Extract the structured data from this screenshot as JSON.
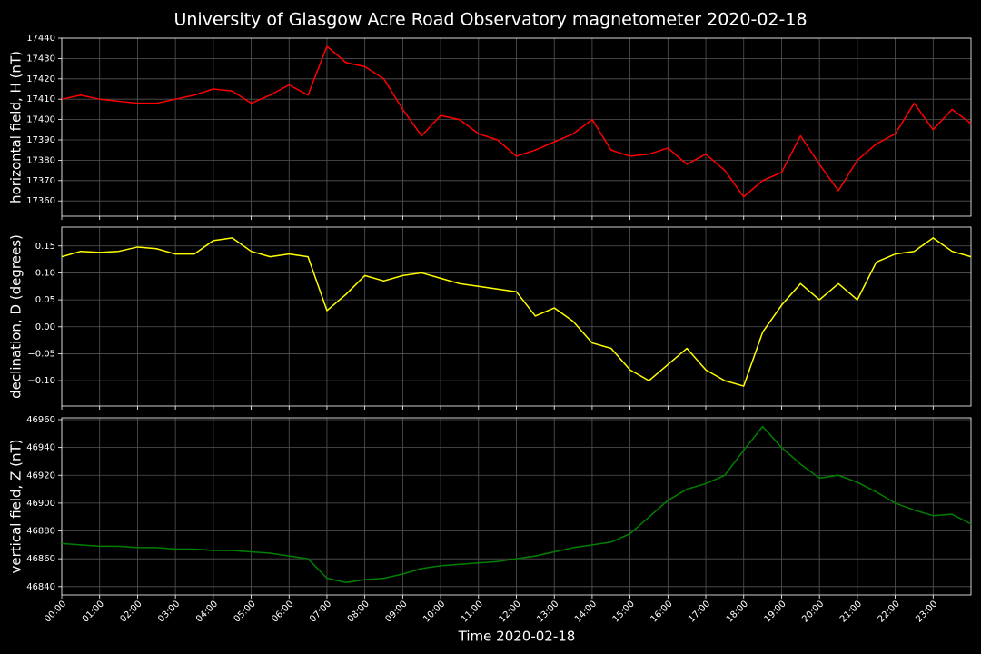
{
  "chart_data": [
    {
      "type": "line",
      "title": "University of Glasgow Acre Road Observatory magnetometer 2020-02-18",
      "ylabel": "horizontal field, H (nT)",
      "xlim": [
        0,
        24
      ],
      "ylim": [
        17352.5,
        17440
      ],
      "yticks": [
        17360,
        17370,
        17380,
        17390,
        17400,
        17410,
        17420,
        17430,
        17440
      ],
      "grid": true,
      "x": [
        0,
        0.5,
        1,
        1.5,
        2,
        2.5,
        3,
        3.5,
        4,
        4.5,
        5,
        5.5,
        6,
        6.5,
        7,
        7.5,
        8,
        8.5,
        9,
        9.5,
        10,
        10.5,
        11,
        11.5,
        12,
        12.5,
        13,
        13.5,
        14,
        14.5,
        15,
        15.5,
        16,
        16.5,
        17,
        17.5,
        18,
        18.5,
        19,
        19.5,
        20,
        20.5,
        21,
        21.5,
        22,
        22.5,
        23,
        23.5,
        24
      ],
      "series": [
        {
          "name": "H",
          "color": "#ff0000",
          "values": [
            17410,
            17412,
            17410,
            17409,
            17408,
            17408,
            17410,
            17412,
            17415,
            17414,
            17408,
            17412,
            17417,
            17412,
            17436,
            17428,
            17426,
            17420,
            17405,
            17392,
            17402,
            17400,
            17393,
            17390,
            17382,
            17385,
            17389,
            17393,
            17400,
            17385,
            17382,
            17383,
            17386,
            17378,
            17383,
            17375,
            17362,
            17370,
            17374,
            17392,
            17378,
            17365,
            17380,
            17388,
            17393,
            17408,
            17395,
            17405,
            17398
          ]
        }
      ]
    },
    {
      "type": "line",
      "ylabel": "declination, D (degrees)",
      "xlim": [
        0,
        24
      ],
      "ylim": [
        -0.147,
        0.185
      ],
      "yticks": [
        {
          "value": -0.1,
          "label": "−0.10"
        },
        {
          "value": -0.05,
          "label": "−0.05"
        },
        {
          "value": 0,
          "label": "0.00"
        },
        {
          "value": 0.05,
          "label": "0.05"
        },
        {
          "value": 0.1,
          "label": "0.10"
        },
        {
          "value": 0.15,
          "label": "0.15"
        }
      ],
      "grid": true,
      "x": [
        0,
        0.5,
        1,
        1.5,
        2,
        2.5,
        3,
        3.5,
        4,
        4.5,
        5,
        5.5,
        6,
        6.5,
        7,
        7.5,
        8,
        8.5,
        9,
        9.5,
        10,
        10.5,
        11,
        11.5,
        12,
        12.5,
        13,
        13.5,
        14,
        14.5,
        15,
        15.5,
        16,
        16.5,
        17,
        17.5,
        18,
        18.5,
        19,
        19.5,
        20,
        20.5,
        21,
        21.5,
        22,
        22.5,
        23,
        23.5,
        24
      ],
      "series": [
        {
          "name": "D",
          "color": "#ffff00",
          "values": [
            0.13,
            0.14,
            0.138,
            0.14,
            0.148,
            0.145,
            0.135,
            0.135,
            0.16,
            0.165,
            0.14,
            0.13,
            0.135,
            0.13,
            0.03,
            0.06,
            0.095,
            0.085,
            0.095,
            0.1,
            0.09,
            0.08,
            0.075,
            0.07,
            0.065,
            0.02,
            0.035,
            0.01,
            -0.03,
            -0.04,
            -0.08,
            -0.1,
            -0.07,
            -0.04,
            -0.08,
            -0.1,
            -0.11,
            -0.01,
            0.04,
            0.08,
            0.05,
            0.08,
            0.05,
            0.12,
            0.135,
            0.14,
            0.165,
            0.14,
            0.13
          ]
        }
      ]
    },
    {
      "type": "line",
      "ylabel": "vertical field, Z (nT)",
      "xlabel": "Time 2020-02-18",
      "xlim": [
        0,
        24
      ],
      "ylim": [
        46834,
        46961.3
      ],
      "yticks": [
        46840,
        46860,
        46880,
        46900,
        46920,
        46940,
        46960
      ],
      "grid": true,
      "xticks": [
        {
          "value": 0,
          "label": "00:00"
        },
        {
          "value": 1,
          "label": "01:00"
        },
        {
          "value": 2,
          "label": "02:00"
        },
        {
          "value": 3,
          "label": "03:00"
        },
        {
          "value": 4,
          "label": "04:00"
        },
        {
          "value": 5,
          "label": "05:00"
        },
        {
          "value": 6,
          "label": "06:00"
        },
        {
          "value": 7,
          "label": "07:00"
        },
        {
          "value": 8,
          "label": "08:00"
        },
        {
          "value": 9,
          "label": "09:00"
        },
        {
          "value": 10,
          "label": "10:00"
        },
        {
          "value": 11,
          "label": "11:00"
        },
        {
          "value": 12,
          "label": "12:00"
        },
        {
          "value": 13,
          "label": "13:00"
        },
        {
          "value": 14,
          "label": "14:00"
        },
        {
          "value": 15,
          "label": "15:00"
        },
        {
          "value": 16,
          "label": "16:00"
        },
        {
          "value": 17,
          "label": "17:00"
        },
        {
          "value": 18,
          "label": "18:00"
        },
        {
          "value": 19,
          "label": "19:00"
        },
        {
          "value": 20,
          "label": "20:00"
        },
        {
          "value": 21,
          "label": "21:00"
        },
        {
          "value": 22,
          "label": "22:00"
        },
        {
          "value": 23,
          "label": "23:00"
        }
      ],
      "x": [
        0,
        0.5,
        1,
        1.5,
        2,
        2.5,
        3,
        3.5,
        4,
        4.5,
        5,
        5.5,
        6,
        6.5,
        7,
        7.5,
        8,
        8.5,
        9,
        9.5,
        10,
        10.5,
        11,
        11.5,
        12,
        12.5,
        13,
        13.5,
        14,
        14.5,
        15,
        15.5,
        16,
        16.5,
        17,
        17.5,
        18,
        18.5,
        19,
        19.5,
        20,
        20.5,
        21,
        21.5,
        22,
        22.5,
        23,
        23.5,
        24
      ],
      "series": [
        {
          "name": "Z",
          "color": "#008000",
          "values": [
            46871,
            46870,
            46869,
            46869,
            46868,
            46868,
            46867,
            46867,
            46866,
            46866,
            46865,
            46864,
            46862,
            46860,
            46846,
            46843,
            46845,
            46846,
            46849,
            46853,
            46855,
            46856,
            46857,
            46858,
            46860,
            46862,
            46865,
            46868,
            46870,
            46872,
            46878,
            46890,
            46902,
            46910,
            46914,
            46920,
            46938,
            46955,
            46940,
            46928,
            46918,
            46920,
            46915,
            46908,
            46900,
            46895,
            46891,
            46892,
            46885
          ]
        }
      ]
    }
  ]
}
